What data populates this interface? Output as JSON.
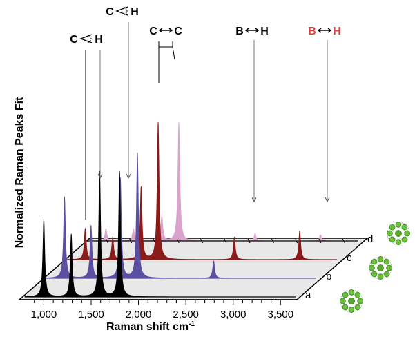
{
  "chart_data": {
    "type": "area",
    "title": "",
    "xlabel": "Raman shift cm",
    "xlabel_superscript": "-1",
    "ylabel": "Normalized Raman Peaks Fit",
    "xlim": [
      800,
      3600
    ],
    "x_ticks": [
      1000,
      1500,
      2000,
      2500,
      3000,
      3500
    ],
    "x_tick_labels": [
      "1,000",
      "1,500",
      "2,000",
      "2,500",
      "3,000",
      "3,500"
    ],
    "grid": false,
    "legend": "none",
    "series": [
      {
        "name": "a",
        "color": "#000000",
        "peaks": [
          [
            1000,
            0.62
          ],
          [
            1290,
            0.5
          ],
          [
            1590,
            1.0
          ],
          [
            1800,
            1.0
          ]
        ]
      },
      {
        "name": "b",
        "color": "#5a4fa0",
        "peaks": [
          [
            1000,
            0.65
          ],
          [
            1280,
            0.42
          ],
          [
            1590,
            0.8
          ],
          [
            1770,
            1.0
          ],
          [
            2575,
            0.14
          ]
        ]
      },
      {
        "name": "c",
        "color": "#8b1a1a",
        "peaks": [
          [
            1000,
            0.25
          ],
          [
            1290,
            0.18
          ],
          [
            1590,
            0.58
          ],
          [
            1770,
            1.1
          ],
          [
            2575,
            0.18
          ],
          [
            3265,
            0.23
          ]
        ]
      },
      {
        "name": "d",
        "color": "#d9a3cc",
        "peaks": [
          [
            1000,
            0.1
          ],
          [
            1290,
            0.1
          ],
          [
            1590,
            0.2
          ],
          [
            1770,
            0.95
          ],
          [
            2575,
            0.06
          ],
          [
            3265,
            0.05
          ]
        ]
      }
    ],
    "annotations": [
      {
        "text": "C",
        "symbol": "bend",
        "text2": "H",
        "color": "#000000"
      },
      {
        "text": "C",
        "symbol": "bend",
        "text2": "H",
        "color": "#000000"
      },
      {
        "text": "C",
        "symbol": "stretch",
        "text2": "C",
        "color": "#000000"
      },
      {
        "text": "B",
        "symbol": "stretch",
        "text2": "H",
        "color": "#000000"
      },
      {
        "text": "B",
        "symbol": "stretch",
        "text2": "H",
        "color": "#e0403a"
      }
    ]
  }
}
